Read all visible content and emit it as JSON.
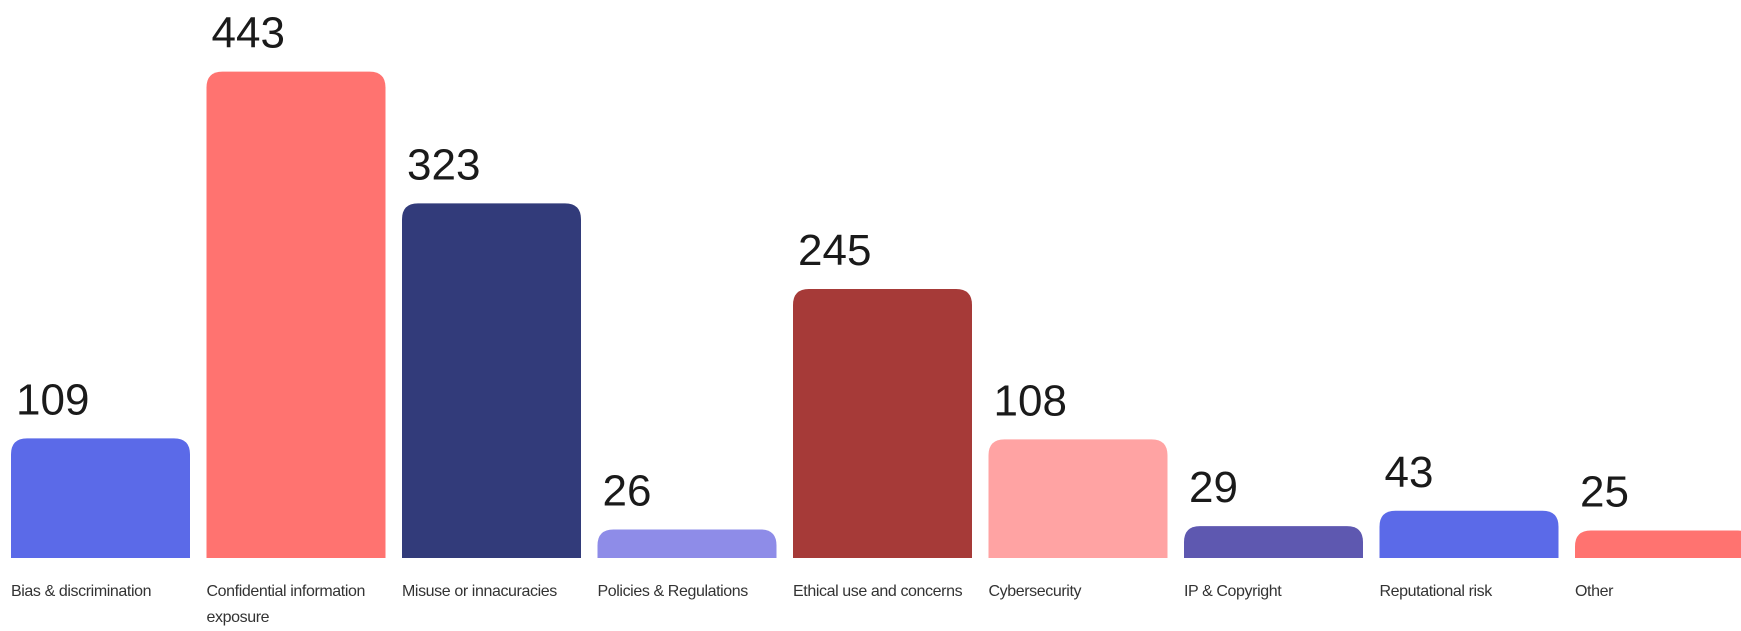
{
  "chart_data": {
    "type": "bar",
    "categories": [
      "Bias & discrimination",
      "Confidential information exposure",
      "Misuse or innacuracies",
      "Policies & Regulations",
      "Ethical use and concerns",
      "Cybersecurity",
      "IP & Copyright",
      "Reputational risk",
      "Other"
    ],
    "values": [
      109,
      443,
      323,
      26,
      245,
      108,
      29,
      43,
      25
    ],
    "colors": [
      "#5b6ae8",
      "#ff7370",
      "#323b7a",
      "#8e8ce8",
      "#a63a38",
      "#ffa3a3",
      "#5e58b0",
      "#5b6ae8",
      "#ff7370"
    ]
  }
}
